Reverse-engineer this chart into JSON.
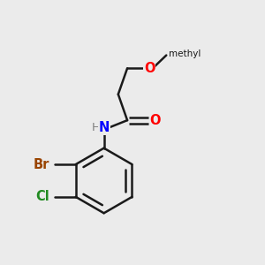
{
  "background_color": "#ebebeb",
  "atom_colors": {
    "C": "#1a1a1a",
    "H": "#808080",
    "N": "#0000FF",
    "O": "#FF0000",
    "Br": "#994400",
    "Cl": "#228B22"
  },
  "bond_color": "#1a1a1a",
  "bond_width": 1.8,
  "font_size": 10.5,
  "fig_width": 3.0,
  "fig_height": 3.0,
  "dpi": 100
}
